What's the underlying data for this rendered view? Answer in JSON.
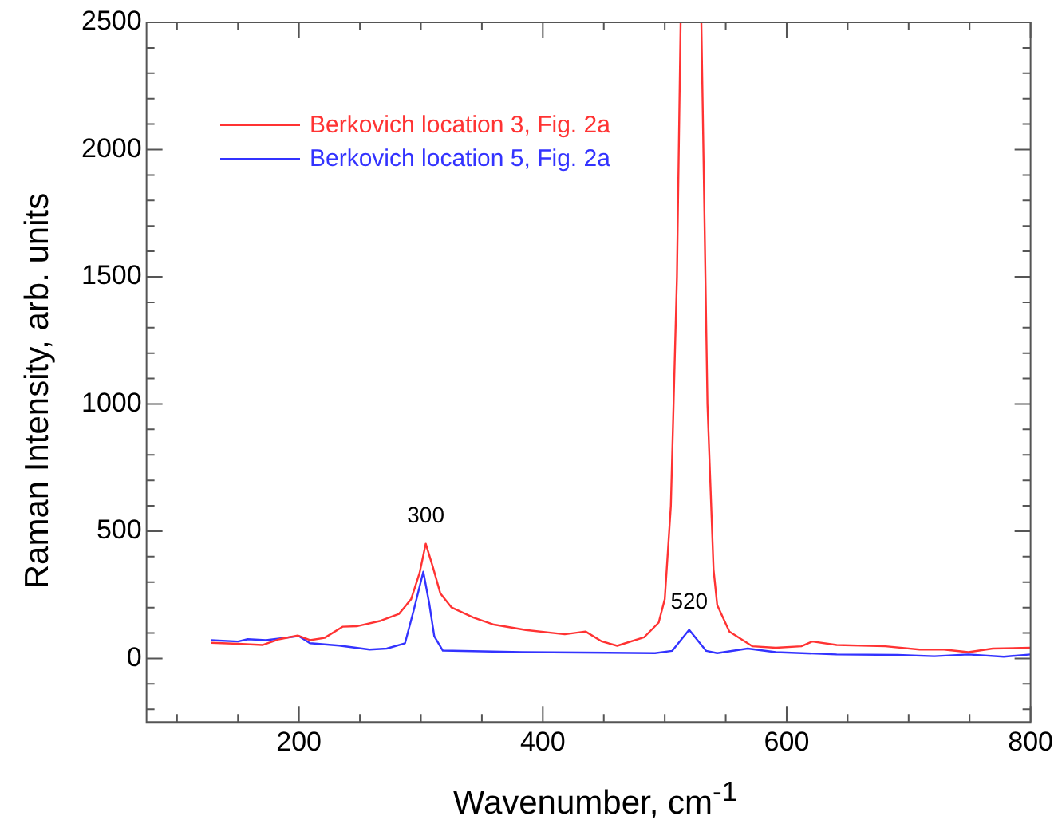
{
  "chart_data": {
    "type": "line",
    "xlabel": "Wavenumber, cm$^{-1}$",
    "ylabel": "Raman Intensity, arb. units",
    "xlim": [
      75,
      800
    ],
    "ylim": [
      -250,
      2500
    ],
    "xticks": [
      {
        "value": 100,
        "label": null
      },
      {
        "value": 150,
        "label": null
      },
      200,
      {
        "value": 250,
        "label": null
      },
      {
        "value": 300,
        "label": null
      },
      {
        "value": 350,
        "label": null
      },
      400,
      {
        "value": 450,
        "label": null
      },
      {
        "value": 500,
        "label": null
      },
      {
        "value": 550,
        "label": null
      },
      600,
      {
        "value": 650,
        "label": null
      },
      {
        "value": 700,
        "label": null
      },
      {
        "value": 750,
        "label": null
      },
      800
    ],
    "yticks": [
      {
        "value": -200,
        "label": null
      },
      {
        "value": -100,
        "label": null
      },
      0,
      {
        "value": 100,
        "label": null
      },
      {
        "value": 200,
        "label": null
      },
      {
        "value": 300,
        "label": null
      },
      {
        "value": 400,
        "label": null
      },
      500,
      {
        "value": 600,
        "label": null
      },
      {
        "value": 700,
        "label": null
      },
      {
        "value": 800,
        "label": null
      },
      {
        "value": 900,
        "label": null
      },
      1000,
      {
        "value": 1100,
        "label": null
      },
      {
        "value": 1200,
        "label": null
      },
      {
        "value": 1300,
        "label": null
      },
      {
        "value": 1400,
        "label": null
      },
      1500,
      {
        "value": 1600,
        "label": null
      },
      {
        "value": 1700,
        "label": null
      },
      {
        "value": 1800,
        "label": null
      },
      {
        "value": 1900,
        "label": null
      },
      2000,
      {
        "value": 2100,
        "label": null
      },
      {
        "value": 2200,
        "label": null
      },
      {
        "value": 2300,
        "label": null
      },
      {
        "value": 2400,
        "label": null
      },
      2500
    ],
    "legend": "top left",
    "marker": "none",
    "series": [
      {
        "name": "Berkovich location 3, Fig. 2a",
        "color": "#ff3333",
        "x": [
          128,
          150,
          170,
          184,
          199,
          209,
          221,
          236,
          248,
          267,
          282,
          292,
          299,
          304,
          310,
          316,
          325,
          343,
          360,
          386,
          418,
          435,
          448,
          461,
          483,
          495,
          500,
          505,
          510,
          513,
          520,
          530,
          535,
          540,
          543,
          553,
          572,
          591,
          612,
          621,
          641,
          681,
          709,
          729,
          749,
          769,
          800
        ],
        "values": [
          62,
          58,
          53,
          76,
          90,
          72,
          81,
          125,
          127,
          148,
          175,
          233,
          337,
          451,
          357,
          255,
          201,
          161,
          133,
          112,
          95,
          106,
          68,
          50,
          83,
          141,
          233,
          600,
          1500,
          2500,
          null,
          2500,
          1000,
          350,
          210,
          106,
          48,
          42,
          48,
          67,
          53,
          48,
          35,
          35,
          25,
          39,
          42
        ]
      },
      {
        "name": "Berkovich location 5, Fig. 2a",
        "color": "#3333ff",
        "x": [
          128,
          150,
          158,
          173,
          200,
          209,
          233,
          258,
          272,
          287,
          294,
          302,
          307,
          311,
          318,
          383,
          492,
          506,
          520,
          534,
          543,
          568,
          591,
          641,
          691,
          721,
          749,
          778,
          800
        ],
        "values": [
          72,
          67,
          76,
          72,
          88,
          60,
          51,
          35,
          39,
          60,
          187,
          341,
          212,
          87,
          31,
          25,
          21,
          30,
          113,
          30,
          21,
          39,
          25,
          16,
          14,
          9,
          16,
          7,
          16
        ]
      }
    ],
    "annotations": [
      {
        "text": "300",
        "x": 304,
        "y": 451
      },
      {
        "text": "520",
        "x": 520,
        "y": 113
      }
    ]
  }
}
